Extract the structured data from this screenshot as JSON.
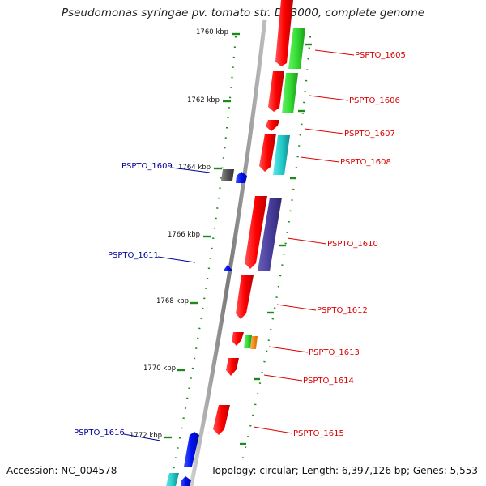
{
  "title": "Pseudomonas syringae pv. tomato str. DC3000, complete genome",
  "footer": {
    "accession": "Accession: NC_004578",
    "summary": "Topology: circular; Length: 6,397,126 bp; Genes: 5,553"
  },
  "ruler_labels": [
    "1760 kbp",
    "1762 kbp",
    "1764 kbp",
    "1766 kbp",
    "1768 kbp",
    "1770 kbp",
    "1772 kbp"
  ],
  "genes_right": [
    {
      "label": "PSPTO_1605",
      "color": "#dd0000"
    },
    {
      "label": "PSPTO_1606",
      "color": "#dd0000"
    },
    {
      "label": "PSPTO_1607",
      "color": "#dd0000"
    },
    {
      "label": "PSPTO_1608",
      "color": "#dd0000"
    },
    {
      "label": "PSPTO_1610",
      "color": "#dd0000"
    },
    {
      "label": "PSPTO_1612",
      "color": "#dd0000"
    },
    {
      "label": "PSPTO_1613",
      "color": "#dd0000"
    },
    {
      "label": "PSPTO_1614",
      "color": "#dd0000"
    },
    {
      "label": "PSPTO_1615",
      "color": "#dd0000"
    }
  ],
  "genes_left": [
    {
      "label": "PSPTO_1609",
      "color": "#000099"
    },
    {
      "label": "PSPTO_1611",
      "color": "#000099"
    },
    {
      "label": "PSPTO_1616",
      "color": "#000099"
    }
  ],
  "colors": {
    "gene_red": "#ff1a1a",
    "green": "#33dd33",
    "cyan": "#22cccc",
    "purple": "#4a3f9c",
    "blue": "#0010ee",
    "gray": "#555555",
    "orange": "#ff8800",
    "tick_green": "#1a8a1a",
    "backbone": "#8c8c8c"
  }
}
